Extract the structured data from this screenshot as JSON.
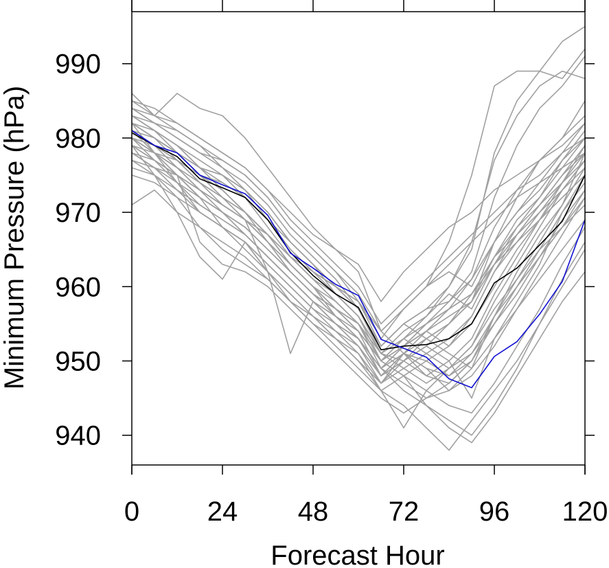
{
  "chart_data": {
    "type": "line",
    "title": "",
    "xlabel": "Forecast Hour",
    "ylabel": "Minimum Pressure (hPa)",
    "xlim": [
      0,
      120
    ],
    "ylim": [
      936,
      997
    ],
    "xticks": [
      0,
      24,
      48,
      72,
      96,
      120
    ],
    "xtick_labels": [
      "0",
      "24",
      "48",
      "72",
      "96",
      "120"
    ],
    "yticks": [
      940,
      950,
      960,
      970,
      980,
      990
    ],
    "ytick_labels": [
      "940",
      "950",
      "960",
      "970",
      "980",
      "990"
    ],
    "grid": false,
    "x": [
      0,
      6,
      12,
      18,
      24,
      30,
      36,
      42,
      48,
      54,
      60,
      66,
      72,
      78,
      84,
      90,
      96,
      102,
      108,
      114,
      120
    ],
    "colors": {
      "ensemble": "#a0a0a0",
      "highlight_black": "#000000",
      "highlight_blue": "#1010d0",
      "axis": "#000000"
    },
    "highlight_series": [
      {
        "color": "#000000",
        "values": [
          980.7,
          979.0,
          977.5,
          974.5,
          973.3,
          972.0,
          969.0,
          964.6,
          961.5,
          959.0,
          957.2,
          951.5,
          952.0,
          952.2,
          953.0,
          955.0,
          960.5,
          962.5,
          965.6,
          968.8,
          975.0
        ]
      },
      {
        "color": "#1010d0",
        "values": [
          981.0,
          979.0,
          978.0,
          975.0,
          973.7,
          972.5,
          969.6,
          964.5,
          962.5,
          960.3,
          958.8,
          952.9,
          951.7,
          950.5,
          947.6,
          946.4,
          950.6,
          952.6,
          956.3,
          960.7,
          969.0
        ]
      }
    ],
    "series": [
      {
        "values": [
          983,
          981,
          979,
          976,
          975,
          973,
          970,
          966,
          963,
          960,
          958,
          952,
          955,
          957,
          960,
          965,
          978,
          985,
          989,
          993,
          995
        ]
      },
      {
        "values": [
          981,
          979,
          977,
          974,
          972,
          970,
          967,
          963,
          960,
          957,
          955,
          950,
          952,
          955,
          958,
          962,
          972,
          979,
          984,
          987,
          991
        ]
      },
      {
        "values": [
          984,
          982,
          980,
          978,
          977,
          975,
          972,
          968,
          965,
          962,
          958,
          953,
          957,
          960,
          966,
          975,
          987,
          989,
          989,
          988,
          992
        ]
      },
      {
        "values": [
          979,
          978,
          977,
          975,
          974,
          972,
          969,
          965,
          962,
          960,
          957,
          951,
          954,
          956,
          960,
          966,
          977,
          983,
          987,
          989,
          988
        ]
      },
      {
        "values": [
          982,
          980,
          978,
          975,
          973,
          970,
          967,
          963,
          960,
          957,
          954,
          948,
          950,
          952,
          955,
          958,
          966,
          972,
          977,
          980,
          985
        ]
      },
      {
        "values": [
          986,
          983,
          986,
          984,
          983,
          980,
          976,
          972,
          968,
          965,
          962,
          954,
          951,
          949,
          948,
          950,
          956,
          962,
          967,
          971,
          978
        ]
      },
      {
        "values": [
          978,
          976,
          973,
          970,
          968,
          966,
          963,
          960,
          957,
          954,
          952,
          947,
          949,
          951,
          953,
          956,
          962,
          967,
          971,
          975,
          979
        ]
      },
      {
        "values": [
          980,
          978,
          976,
          973,
          970,
          967,
          964,
          961,
          958,
          955,
          953,
          949,
          951,
          954,
          957,
          961,
          968,
          973,
          977,
          980,
          983
        ]
      },
      {
        "values": [
          971,
          973,
          970,
          968,
          966,
          964,
          961,
          958,
          955,
          953,
          951,
          947,
          950,
          953,
          955,
          959,
          964,
          969,
          972,
          976,
          980
        ]
      },
      {
        "values": [
          985,
          983,
          981,
          979,
          976,
          973,
          969,
          965,
          962,
          959,
          956,
          950,
          948,
          946,
          944,
          943,
          947,
          952,
          957,
          963,
          968
        ]
      },
      {
        "values": [
          983,
          981,
          978,
          976,
          975,
          972,
          968,
          964,
          961,
          958,
          955,
          949,
          946,
          944,
          942,
          940,
          944,
          949,
          955,
          961,
          966
        ]
      },
      {
        "values": [
          977,
          975,
          972,
          968,
          965,
          963,
          961,
          958,
          956,
          953,
          950,
          946,
          941,
          946,
          949,
          952,
          958,
          963,
          968,
          973,
          977
        ]
      },
      {
        "values": [
          982,
          978,
          974,
          970,
          968,
          966,
          962,
          959,
          956,
          953,
          950,
          947,
          951,
          948,
          950,
          945,
          953,
          958,
          963,
          970,
          975
        ]
      },
      {
        "values": [
          980,
          977,
          975,
          972,
          968,
          965,
          962,
          959,
          956,
          954,
          951,
          946,
          944,
          941,
          938,
          942,
          946,
          950,
          955,
          960,
          965
        ]
      },
      {
        "values": [
          979,
          977,
          974,
          971,
          969,
          967,
          964,
          961,
          958,
          955,
          952,
          948,
          951,
          949,
          946,
          948,
          952,
          957,
          962,
          967,
          972
        ]
      },
      {
        "values": [
          984,
          982,
          980,
          978,
          976,
          974,
          971,
          967,
          964,
          961,
          957,
          952,
          955,
          953,
          951,
          949,
          956,
          961,
          966,
          971,
          976
        ]
      },
      {
        "values": [
          981,
          980,
          978,
          976,
          973,
          970,
          966,
          962,
          959,
          956,
          953,
          948,
          950,
          952,
          950,
          953,
          959,
          964,
          969,
          974,
          978
        ]
      },
      {
        "values": [
          978,
          976,
          974,
          972,
          970,
          967,
          964,
          961,
          958,
          955,
          953,
          949,
          952,
          954,
          952,
          956,
          962,
          966,
          970,
          974,
          979
        ]
      },
      {
        "values": [
          980,
          979,
          977,
          975,
          973,
          970,
          967,
          963,
          960,
          957,
          954,
          950,
          953,
          956,
          959,
          957,
          963,
          968,
          972,
          977,
          981
        ]
      },
      {
        "values": [
          982,
          980,
          977,
          974,
          971,
          969,
          966,
          963,
          960,
          956,
          953,
          948,
          951,
          950,
          948,
          951,
          955,
          960,
          965,
          970,
          974
        ]
      },
      {
        "values": [
          975,
          974,
          972,
          970,
          968,
          966,
          963,
          960,
          957,
          955,
          952,
          948,
          951,
          953,
          955,
          958,
          964,
          968,
          971,
          975,
          978
        ]
      },
      {
        "values": [
          983,
          982,
          981,
          979,
          977,
          975,
          972,
          968,
          965,
          962,
          959,
          954,
          957,
          960,
          962,
          960,
          966,
          970,
          974,
          978,
          982
        ]
      },
      {
        "values": [
          979,
          975,
          970,
          964,
          961,
          966,
          962,
          958,
          955,
          952,
          949,
          946,
          948,
          950,
          952,
          955,
          960,
          965,
          969,
          973,
          977
        ]
      },
      {
        "values": [
          981,
          978,
          975,
          966,
          963,
          962,
          960,
          957,
          954,
          951,
          948,
          945,
          943,
          945,
          947,
          950,
          955,
          960,
          964,
          969,
          973
        ]
      },
      {
        "values": [
          977,
          976,
          975,
          973,
          971,
          969,
          966,
          962,
          959,
          957,
          955,
          951,
          953,
          955,
          957,
          959,
          964,
          967,
          970,
          973,
          976
        ]
      },
      {
        "values": [
          980,
          978,
          976,
          974,
          972,
          969,
          962,
          951,
          958,
          956,
          954,
          950,
          952,
          954,
          956,
          958,
          963,
          966,
          969,
          972,
          975
        ]
      },
      {
        "values": [
          982,
          981,
          979,
          977,
          975,
          973,
          970,
          966,
          963,
          959,
          956,
          951,
          949,
          947,
          949,
          952,
          957,
          961,
          965,
          968,
          972
        ]
      },
      {
        "values": [
          984,
          983,
          982,
          980,
          978,
          976,
          973,
          969,
          966,
          963,
          960,
          955,
          958,
          961,
          964,
          967,
          970,
          973,
          975,
          978,
          980
        ]
      },
      {
        "values": [
          979,
          977,
          975,
          972,
          970,
          968,
          965,
          962,
          959,
          956,
          953,
          949,
          947,
          945,
          946,
          949,
          953,
          957,
          961,
          965,
          969
        ]
      },
      {
        "values": [
          981,
          979,
          976,
          973,
          971,
          969,
          966,
          963,
          960,
          958,
          955,
          950,
          948,
          944,
          941,
          939,
          943,
          948,
          953,
          958,
          962
        ]
      },
      {
        "values": [
          980,
          978,
          975,
          972,
          970,
          968,
          965,
          962,
          959,
          957,
          954,
          950,
          953,
          951,
          949,
          951,
          956,
          960,
          964,
          968,
          971
        ]
      },
      {
        "values": [
          983,
          981,
          979,
          976,
          974,
          972,
          969,
          966,
          963,
          960,
          957,
          952,
          955,
          957,
          958,
          961,
          966,
          970,
          973,
          977,
          980
        ]
      },
      {
        "values": [
          978,
          977,
          975,
          973,
          971,
          969,
          967,
          964,
          962,
          960,
          958,
          954,
          957,
          960,
          963,
          966,
          969,
          972,
          974,
          976,
          978
        ]
      },
      {
        "values": [
          982,
          980,
          978,
          975,
          972,
          970,
          967,
          964,
          961,
          959,
          956,
          951,
          950,
          948,
          947,
          950,
          955,
          959,
          964,
          968,
          973
        ]
      },
      {
        "values": [
          976,
          975,
          973,
          971,
          969,
          967,
          964,
          961,
          958,
          956,
          953,
          949,
          952,
          955,
          957,
          959,
          963,
          967,
          971,
          974,
          977
        ]
      },
      {
        "values": [
          985,
          984,
          982,
          980,
          978,
          976,
          973,
          970,
          967,
          965,
          963,
          958,
          962,
          965,
          968,
          970,
          973,
          975,
          977,
          979,
          982
        ]
      }
    ]
  }
}
